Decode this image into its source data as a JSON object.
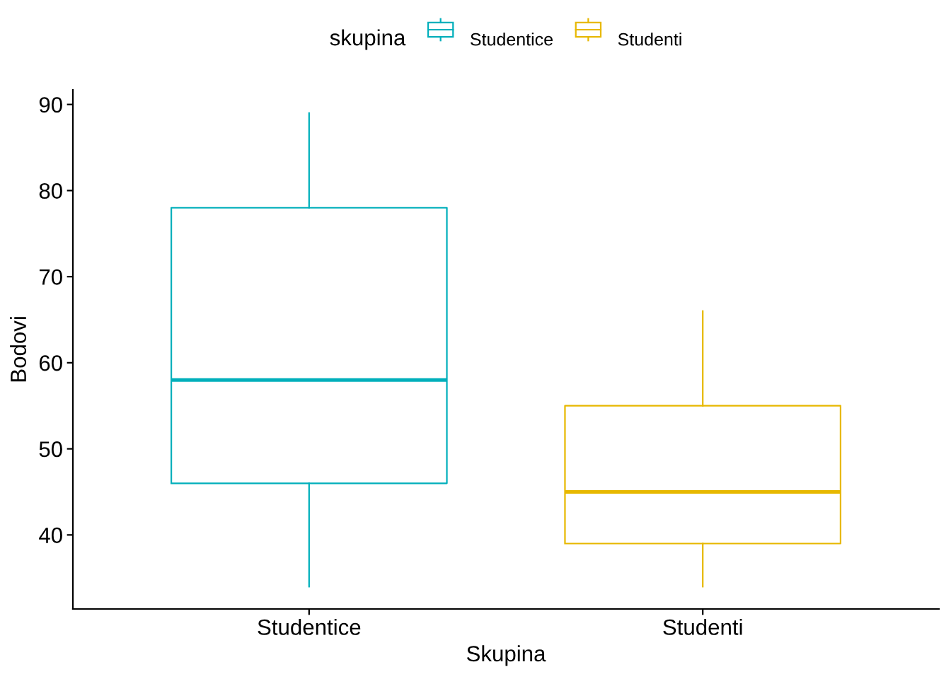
{
  "chart_data": {
    "type": "box",
    "xlabel": "Skupina",
    "ylabel": "Bodovi",
    "legend_title": "skupina",
    "legend": "top",
    "categories": [
      "Studentice",
      "Studenti"
    ],
    "ylim": [
      31.4,
      91.7
    ],
    "yticks": [
      40,
      50,
      60,
      70,
      80,
      90
    ],
    "series": [
      {
        "name": "Studentice",
        "color": "#00AFBB",
        "boxes": [
          {
            "low": 34,
            "q1": 46,
            "median": 58,
            "q3": 78,
            "high": 89
          },
          null
        ]
      },
      {
        "name": "Studenti",
        "color": "#E7B800",
        "boxes": [
          null,
          {
            "low": 34,
            "q1": 39,
            "median": 45,
            "q3": 55,
            "high": 66
          }
        ]
      }
    ]
  }
}
